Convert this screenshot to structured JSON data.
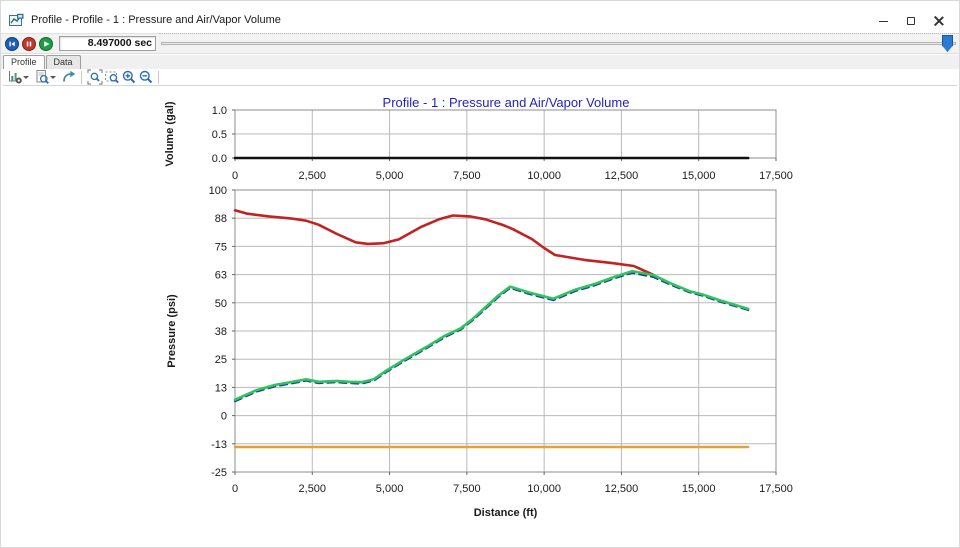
{
  "window": {
    "title": "Profile - Profile - 1 : Pressure and Air/Vapor Volume"
  },
  "playback": {
    "time_display": "8.497000 sec",
    "slider_thumb_color": "#2b7bd3"
  },
  "tabs": {
    "profile": {
      "label": "Profile"
    },
    "data": {
      "label": "Data"
    }
  },
  "figure": {
    "title": "Profile - 1 : Pressure and Air/Vapor Volume",
    "title_color": "#2323bf"
  },
  "chart_data": [
    {
      "type": "line",
      "name": "air-vapor-volume-profile",
      "ylabel": "Volume (gal)",
      "xlim": [
        0,
        17500
      ],
      "ylim": [
        0,
        1
      ],
      "grid": true,
      "xticks": {
        "values": [
          0,
          2500,
          5000,
          7500,
          10000,
          12500,
          15000,
          17500
        ],
        "labels": [
          "0",
          "2,500",
          "5,000",
          "7,500",
          "10,000",
          "12,500",
          "15,000",
          "17,500"
        ]
      },
      "yticks": {
        "values": [
          1.0,
          0.5,
          0.0
        ],
        "labels": [
          "1.0",
          "0.5",
          "0.0"
        ]
      },
      "series": [
        {
          "name": "air-vapor-volume",
          "color": "#111111",
          "width": 2.6,
          "points": [
            [
              0,
              0
            ],
            [
              16600,
              0
            ]
          ]
        }
      ]
    },
    {
      "type": "line",
      "name": "pressure-profile",
      "xlabel": "Distance (ft)",
      "ylabel": "Pressure (psi)",
      "xlim": [
        0,
        17500
      ],
      "ylim": [
        -25,
        100
      ],
      "grid": true,
      "xticks": {
        "values": [
          0,
          2500,
          5000,
          7500,
          10000,
          12500,
          15000,
          17500
        ],
        "labels": [
          "0",
          "2,500",
          "5,000",
          "7,500",
          "10,000",
          "12,500",
          "15,000",
          "17,500"
        ]
      },
      "yticks": {
        "values": [
          100,
          87.5,
          75,
          62.5,
          50,
          37.5,
          25,
          12.5,
          0,
          -12.5,
          -25
        ],
        "labels": [
          "100",
          "88",
          "75",
          "63",
          "50",
          "38",
          "25",
          "13",
          "0",
          "-13",
          "-25"
        ]
      },
      "series": [
        {
          "name": "vapor-pressure-limit",
          "color": "#dfa337",
          "width": 2.4,
          "points": [
            [
              0,
              -13.9
            ],
            [
              16600,
              -13.9
            ]
          ]
        },
        {
          "name": "max-pressure",
          "color": "#c32222",
          "width": 2.6,
          "points": [
            [
              0,
              91
            ],
            [
              400,
              89.5
            ],
            [
              1100,
              88.3
            ],
            [
              1800,
              87.4
            ],
            [
              2300,
              86.4
            ],
            [
              2700,
              84.6
            ],
            [
              3300,
              80.5
            ],
            [
              3900,
              76.8
            ],
            [
              4300,
              76.1
            ],
            [
              4800,
              76.4
            ],
            [
              5300,
              78.1
            ],
            [
              6000,
              83.5
            ],
            [
              6600,
              87.0
            ],
            [
              7050,
              88.7
            ],
            [
              7600,
              88.3
            ],
            [
              8100,
              87.0
            ],
            [
              8700,
              84.3
            ],
            [
              9000,
              82.6
            ],
            [
              9600,
              78.3
            ],
            [
              10000,
              74.3
            ],
            [
              10350,
              71.2
            ],
            [
              11300,
              69.0
            ],
            [
              12200,
              67.6
            ],
            [
              12900,
              66.3
            ],
            [
              13530,
              62.4
            ]
          ]
        },
        {
          "name": "min-pressure",
          "color": "#1c3f94",
          "width": 2.2,
          "dash": "7 5",
          "points": [
            [
              0,
              6.4
            ],
            [
              700,
              10.7
            ],
            [
              1300,
              13.0
            ],
            [
              1800,
              14.2
            ],
            [
              2300,
              15.5
            ],
            [
              2700,
              14.4
            ],
            [
              3300,
              14.8
            ],
            [
              3700,
              14.4
            ],
            [
              4100,
              14.2
            ],
            [
              4500,
              15.6
            ],
            [
              4900,
              19.4
            ],
            [
              5500,
              24.4
            ],
            [
              6200,
              29.9
            ],
            [
              6800,
              34.9
            ],
            [
              7300,
              38.1
            ],
            [
              7700,
              42.4
            ],
            [
              8100,
              47.4
            ],
            [
              8500,
              52.4
            ],
            [
              8900,
              56.6
            ],
            [
              9500,
              54.0
            ],
            [
              10300,
              51.2
            ],
            [
              11000,
              55.2
            ],
            [
              11600,
              57.6
            ],
            [
              12300,
              61.0
            ],
            [
              12850,
              63.3
            ],
            [
              13530,
              61.5
            ],
            [
              14100,
              58.0
            ],
            [
              14700,
              54.7
            ],
            [
              15100,
              53.3
            ],
            [
              15700,
              50.5
            ],
            [
              16600,
              46.8
            ]
          ]
        },
        {
          "name": "pressure",
          "color": "#2fc45e",
          "width": 2.6,
          "points": [
            [
              0,
              7.0
            ],
            [
              700,
              11.3
            ],
            [
              1300,
              13.6
            ],
            [
              1800,
              14.8
            ],
            [
              2300,
              16.1
            ],
            [
              2700,
              15.0
            ],
            [
              3300,
              15.4
            ],
            [
              3700,
              15.0
            ],
            [
              4100,
              14.8
            ],
            [
              4500,
              16.2
            ],
            [
              4900,
              20.0
            ],
            [
              5500,
              25.0
            ],
            [
              6200,
              30.5
            ],
            [
              6800,
              35.5
            ],
            [
              7300,
              38.7
            ],
            [
              7700,
              43.0
            ],
            [
              8100,
              48.0
            ],
            [
              8500,
              53.0
            ],
            [
              8900,
              57.2
            ],
            [
              9500,
              54.6
            ],
            [
              10300,
              51.8
            ],
            [
              11000,
              55.8
            ],
            [
              11600,
              58.2
            ],
            [
              12300,
              61.6
            ],
            [
              12850,
              64.0
            ],
            [
              13530,
              62.3
            ],
            [
              14100,
              58.6
            ],
            [
              14700,
              55.2
            ],
            [
              15100,
              53.8
            ],
            [
              15700,
              51.0
            ],
            [
              16600,
              47.3
            ]
          ]
        }
      ]
    }
  ]
}
